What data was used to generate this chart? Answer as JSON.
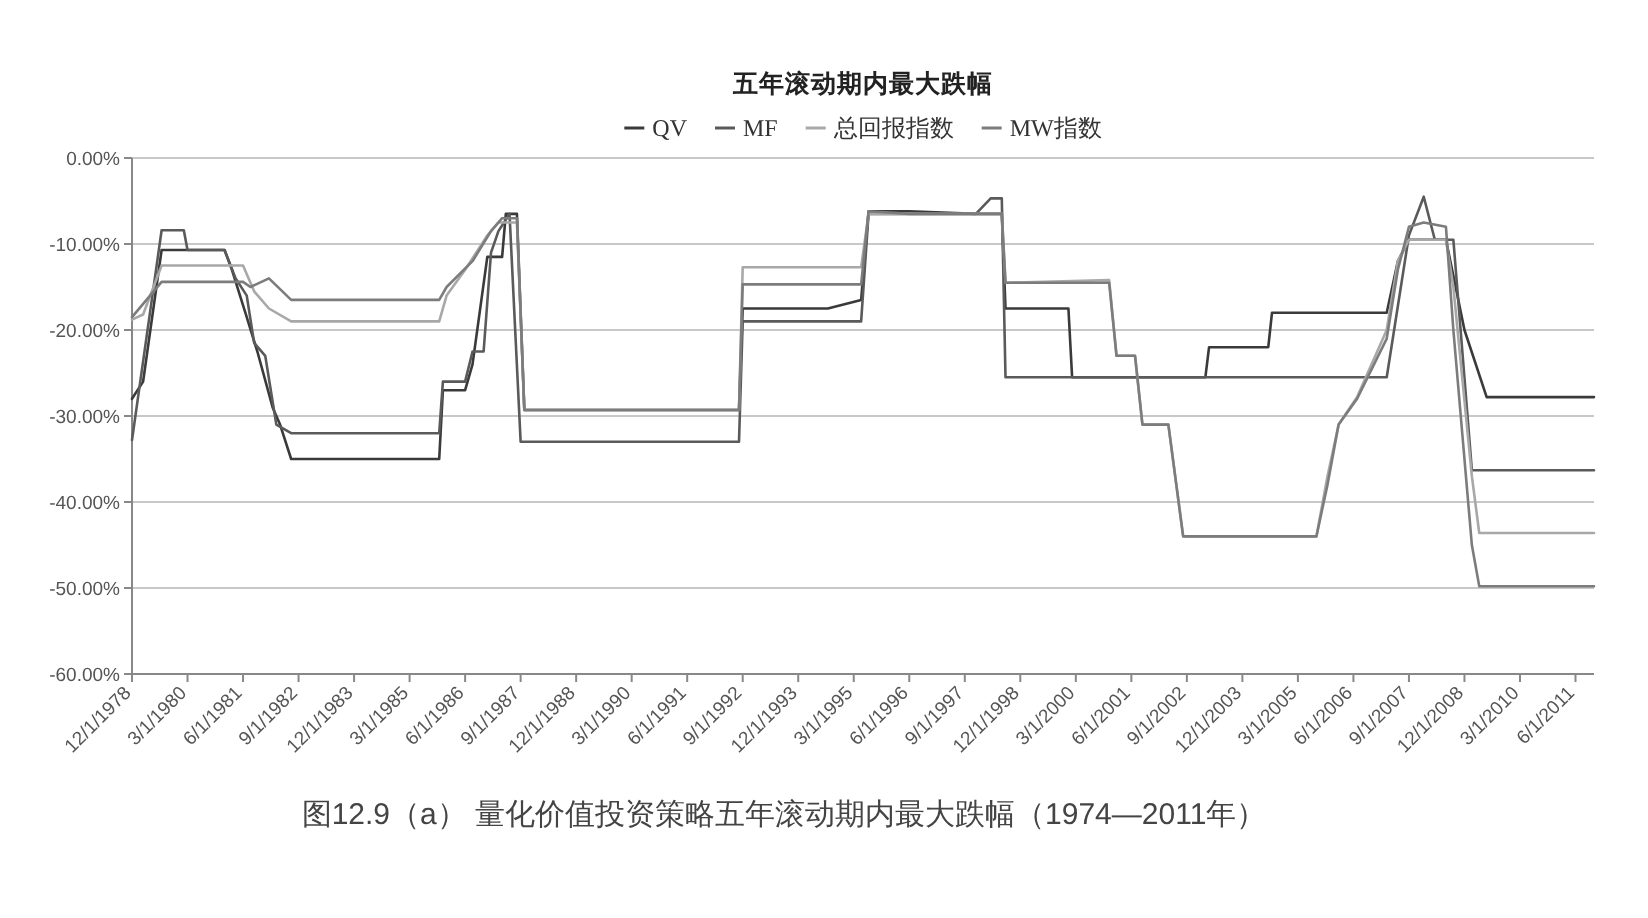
{
  "chart_data": {
    "type": "line",
    "title": "五年滚动期内最大跌幅",
    "annotations": [
      "图12.9（a） 量化价值投资策略五年滚动期内最大跌幅（1974—2011年）"
    ],
    "xlim": [
      "1978-12",
      "2011-11"
    ],
    "xticks": [
      {
        "value": "1978-12",
        "label": "12/1/1978"
      },
      {
        "value": "1980-03",
        "label": "3/1/1980"
      },
      {
        "value": "1981-06",
        "label": "6/1/1981"
      },
      {
        "value": "1982-09",
        "label": "9/1/1982"
      },
      {
        "value": "1983-12",
        "label": "12/1/1983"
      },
      {
        "value": "1985-03",
        "label": "3/1/1985"
      },
      {
        "value": "1986-06",
        "label": "6/1/1986"
      },
      {
        "value": "1987-09",
        "label": "9/1/1987"
      },
      {
        "value": "1988-12",
        "label": "12/1/1988"
      },
      {
        "value": "1990-03",
        "label": "3/1/1990"
      },
      {
        "value": "1991-06",
        "label": "6/1/1991"
      },
      {
        "value": "1992-09",
        "label": "9/1/1992"
      },
      {
        "value": "1993-12",
        "label": "12/1/1993"
      },
      {
        "value": "1995-03",
        "label": "3/1/1995"
      },
      {
        "value": "1996-06",
        "label": "6/1/1996"
      },
      {
        "value": "1997-09",
        "label": "9/1/1997"
      },
      {
        "value": "1998-12",
        "label": "12/1/1998"
      },
      {
        "value": "2000-03",
        "label": "3/1/2000"
      },
      {
        "value": "2001-06",
        "label": "6/1/2001"
      },
      {
        "value": "2002-09",
        "label": "9/1/2002"
      },
      {
        "value": "2003-12",
        "label": "12/1/2003"
      },
      {
        "value": "2005-03",
        "label": "3/1/2005"
      },
      {
        "value": "2006-06",
        "label": "6/1/2006"
      },
      {
        "value": "2007-09",
        "label": "9/1/2007"
      },
      {
        "value": "2008-12",
        "label": "12/1/2008"
      },
      {
        "value": "2010-03",
        "label": "3/1/2010"
      },
      {
        "value": "2011-06",
        "label": "6/1/2011"
      }
    ],
    "ylim": [
      -60,
      0
    ],
    "yticks": [
      {
        "value": 0,
        "label": "0.00%"
      },
      {
        "value": -10,
        "label": "-10.00%"
      },
      {
        "value": -20,
        "label": "-20.00%"
      },
      {
        "value": -30,
        "label": "-30.00%"
      },
      {
        "value": -40,
        "label": "-40.00%"
      },
      {
        "value": -50,
        "label": "-50.00%"
      },
      {
        "value": -60,
        "label": "-60.00%"
      }
    ],
    "grid": "y",
    "legend": "top",
    "marker": "none",
    "line_style": "solid",
    "series": [
      {
        "name": "QV",
        "color": "#3a3a3a",
        "x": [
          "1978-12",
          "1979-03",
          "1979-08",
          "1981-01",
          "1981-03",
          "1981-07",
          "1981-10",
          "1982-02",
          "1982-04",
          "1982-07",
          "1985-11",
          "1985-12",
          "1986-06",
          "1986-08",
          "1986-12",
          "1987-04",
          "1987-05",
          "1987-08",
          "1987-10",
          "1992-08",
          "1992-09",
          "1994-08",
          "1995-05",
          "1995-07",
          "1996-06",
          "1997-12",
          "1998-07",
          "1998-08",
          "2000-01",
          "2000-02",
          "2003-02",
          "2003-03",
          "2004-07",
          "2004-08",
          "2007-03",
          "2007-06",
          "2007-09",
          "2008-07",
          "2008-12",
          "2009-06",
          "2011-11"
        ],
        "values": [
          -28,
          -26,
          -10.7,
          -10.7,
          -13,
          -18.5,
          -22.7,
          -29,
          -31,
          -35,
          -35,
          -27,
          -27,
          -24,
          -11.5,
          -11.5,
          -6.5,
          -6.5,
          -29.3,
          -29.3,
          -17.5,
          -17.5,
          -16.5,
          -6.2,
          -6.2,
          -6.5,
          -6.5,
          -17.5,
          -17.5,
          -25.5,
          -25.5,
          -22,
          -22,
          -18,
          -18,
          -12,
          -9.5,
          -9.5,
          -20,
          -27.8,
          -27.8
        ]
      },
      {
        "name": "MF",
        "color": "#5a5a5a",
        "x": [
          "1978-12",
          "1979-08",
          "1980-02",
          "1980-03",
          "1981-01",
          "1981-04",
          "1981-07",
          "1981-09",
          "1981-12",
          "1982-03",
          "1982-07",
          "1985-11",
          "1985-12",
          "1986-06",
          "1986-08",
          "1986-11",
          "1987-01",
          "1987-03",
          "1987-06",
          "1987-09",
          "1992-08",
          "1992-09",
          "1995-05",
          "1995-07",
          "1997-12",
          "1998-04",
          "1998-07",
          "1998-08",
          "2007-03",
          "2007-09",
          "2008-01",
          "2008-04",
          "2008-09",
          "2009-02",
          "2011-11"
        ],
        "values": [
          -32.8,
          -8.4,
          -8.4,
          -10.7,
          -10.7,
          -14,
          -16,
          -21.5,
          -23,
          -31,
          -32,
          -32,
          -26,
          -26,
          -22.5,
          -22.5,
          -11,
          -8.5,
          -6.5,
          -33,
          -33,
          -19,
          -19,
          -6.5,
          -6.5,
          -4.7,
          -4.7,
          -25.5,
          -25.5,
          -9,
          -4.5,
          -9.5,
          -9.5,
          -36.3,
          -36.3
        ]
      },
      {
        "name": "总回报指数",
        "color": "#a8a8a8",
        "x": [
          "1978-12",
          "1979-03",
          "1979-08",
          "1981-06",
          "1981-09",
          "1982-01",
          "1982-07",
          "1985-11",
          "1986-01",
          "1986-06",
          "1986-12",
          "1987-03",
          "1987-08",
          "1987-10",
          "1992-08",
          "1992-09",
          "1995-05",
          "1995-07",
          "1997-12",
          "1998-07",
          "1998-08",
          "2000-12",
          "2001-02",
          "2001-07",
          "2001-09",
          "2002-04",
          "2002-08",
          "2005-08",
          "2005-11",
          "2006-02",
          "2006-07",
          "2007-03",
          "2007-06",
          "2007-09",
          "2008-07",
          "2008-09",
          "2009-02",
          "2009-04",
          "2011-11"
        ],
        "values": [
          -18.8,
          -18.2,
          -12.5,
          -12.5,
          -15.5,
          -17.5,
          -19,
          -19,
          -16,
          -13,
          -9,
          -7.5,
          -7.5,
          -29.3,
          -29.3,
          -12.7,
          -12.7,
          -6.5,
          -6.5,
          -6.5,
          -14.5,
          -14.2,
          -23,
          -23,
          -31,
          -31,
          -44,
          -44,
          -37,
          -31,
          -27.8,
          -20,
          -12,
          -9.5,
          -9.5,
          -15,
          -37,
          -43.6,
          -43.6
        ]
      },
      {
        "name": "MW指数",
        "color": "#7c7c7c",
        "x": [
          "1978-12",
          "1979-08",
          "1981-06",
          "1981-08",
          "1982-01",
          "1982-07",
          "1985-11",
          "1986-01",
          "1986-08",
          "1987-01",
          "1987-04",
          "1987-08",
          "1987-10",
          "1992-08",
          "1992-09",
          "1995-05",
          "1995-07",
          "1996-06",
          "1998-07",
          "1998-08",
          "2000-12",
          "2001-02",
          "2001-07",
          "2001-09",
          "2002-04",
          "2002-08",
          "2005-08",
          "2005-11",
          "2006-02",
          "2006-07",
          "2007-03",
          "2007-06",
          "2007-09",
          "2008-01",
          "2008-07",
          "2008-09",
          "2009-02",
          "2009-04",
          "2011-11"
        ],
        "values": [
          -18.5,
          -14.4,
          -14.4,
          -15,
          -14,
          -16.5,
          -16.5,
          -15,
          -12,
          -8.5,
          -7,
          -7,
          -29.3,
          -29.3,
          -14.7,
          -14.7,
          -6.2,
          -6.5,
          -6.5,
          -14.5,
          -14.5,
          -23,
          -23,
          -31,
          -31,
          -44,
          -44,
          -38,
          -31,
          -28,
          -21,
          -13,
          -8,
          -7.5,
          -8,
          -20,
          -45,
          -49.8,
          -49.8
        ]
      }
    ]
  }
}
